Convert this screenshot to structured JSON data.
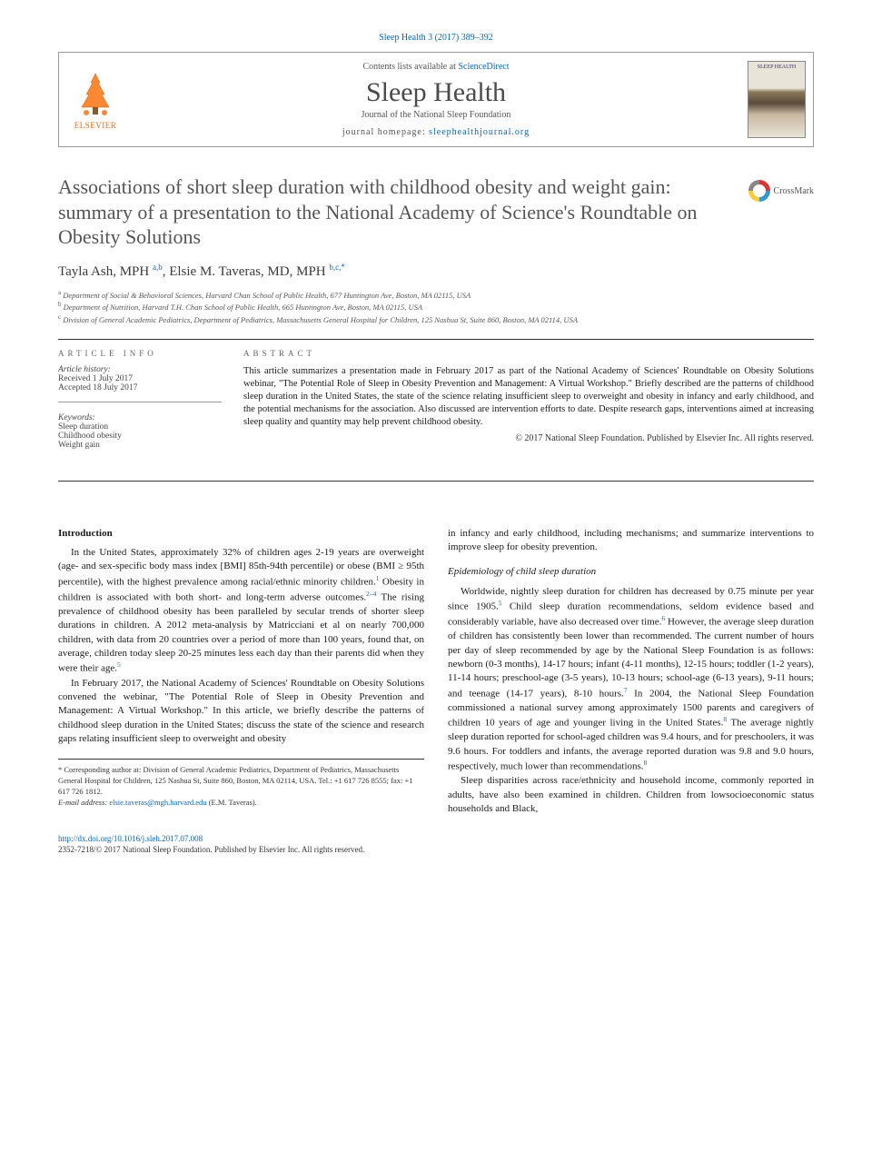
{
  "citation": "Sleep Health 3 (2017) 389–392",
  "header": {
    "contents_prefix": "Contents lists available at ",
    "contents_link": "ScienceDirect",
    "journal_title": "Sleep Health",
    "journal_subtitle": "Journal of the National Sleep Foundation",
    "homepage_prefix": "journal homepage: ",
    "homepage_link": "sleephealthjournal.org",
    "elsevier_label": "ELSEVIER",
    "cover_label": "SLEEP HEALTH"
  },
  "crossmark_label": "CrossMark",
  "title": "Associations of short sleep duration with childhood obesity and weight gain: summary of a presentation to the National Academy of Science's Roundtable on Obesity Solutions",
  "authors_html": "Tayla Ash, MPH <sup>a,b</sup>, Elsie M. Taveras, MD, MPH <sup>b,c,*</sup>",
  "affiliations": [
    "a Department of Social & Behavioral Sciences, Harvard Chan School of Public Health, 677 Huntington Ave, Boston, MA 02115, USA",
    "b Department of Nutrition, Harvard T.H. Chan School of Public Health, 665 Huntington Ave, Boston, MA 02115, USA",
    "c Division of General Academic Pediatrics, Department of Pediatrics, Massachusetts General Hospital for Children, 125 Nashua St, Suite 860, Boston, MA 02114, USA"
  ],
  "info": {
    "heading": "ARTICLE INFO",
    "history_label": "Article history:",
    "received": "Received 1 July 2017",
    "accepted": "Accepted 18 July 2017",
    "keywords_label": "Keywords:",
    "keywords": [
      "Sleep duration",
      "Childhood obesity",
      "Weight gain"
    ]
  },
  "abstract": {
    "heading": "ABSTRACT",
    "text": "This article summarizes a presentation made in February 2017 as part of the National Academy of Sciences' Roundtable on Obesity Solutions webinar, \"The Potential Role of Sleep in Obesity Prevention and Management: A Virtual Workshop.\" Briefly described are the patterns of childhood sleep duration in the United States, the state of the science relating insufficient sleep to overweight and obesity in infancy and early childhood, and the potential mechanisms for the association. Also discussed are intervention efforts to date. Despite research gaps, interventions aimed at increasing sleep quality and quantity may help prevent childhood obesity.",
    "copyright": "© 2017 National Sleep Foundation. Published by Elsevier Inc. All rights reserved."
  },
  "body": {
    "intro_heading": "Introduction",
    "p1": "In the United States, approximately 32% of children ages 2-19 years are overweight (age- and sex-specific body mass index [BMI] 85th-94th percentile) or obese (BMI ≥ 95th percentile), with the highest prevalence among racial/ethnic minority children.¹ Obesity in children is associated with both short- and long-term adverse outcomes.²⁻⁴ The rising prevalence of childhood obesity has been paralleled by secular trends of shorter sleep durations in children. A 2012 meta-analysis by Matricciani et al on nearly 700,000 children, with data from 20 countries over a period of more than 100 years, found that, on average, children today sleep 20-25 minutes less each day than their parents did when they were their age.⁵",
    "p2": "In February 2017, the National Academy of Sciences' Roundtable on Obesity Solutions convened the webinar, \"The Potential Role of Sleep in Obesity Prevention and Management: A Virtual Workshop.\" In this article, we briefly describe the patterns of childhood sleep duration in the United States; discuss the state of the science and research gaps relating insufficient sleep to overweight and obesity",
    "p2b": "in infancy and early childhood, including mechanisms; and summarize interventions to improve sleep for obesity prevention.",
    "sub_heading": "Epidemiology of child sleep duration",
    "p3": "Worldwide, nightly sleep duration for children has decreased by 0.75 minute per year since 1905.⁵ Child sleep duration recommendations, seldom evidence based and considerably variable, have also decreased over time.⁶ However, the average sleep duration of children has consistently been lower than recommended. The current number of hours per day of sleep recommended by age by the National Sleep Foundation is as follows: newborn (0-3 months), 14-17 hours; infant (4-11 months), 12-15 hours; toddler (1-2 years), 11-14 hours; preschool-age (3-5 years), 10-13 hours; school-age (6-13 years), 9-11 hours; and teenage (14-17 years), 8-10 hours.⁷ In 2004, the National Sleep Foundation commissioned a national survey among approximately 1500 parents and caregivers of children 10 years of age and younger living in the United States.⁸ The average nightly sleep duration reported for school-aged children was 9.4 hours, and for preschoolers, it was 9.6 hours. For toddlers and infants, the average reported duration was 9.8 and 9.0 hours, respectively, much lower than recommendations.⁸",
    "p4": "Sleep disparities across race/ethnicity and household income, commonly reported in adults, have also been examined in children. Children from lowsocioeconomic status households and Black,"
  },
  "corresponding": {
    "text": "* Corresponding author at: Division of General Academic Pediatrics, Department of Pediatrics, Massachusetts General Hospital for Children, 125 Nashua St, Suite 860, Boston, MA 02114, USA. Tel.: +1 617 726 8555; fax: +1 617 726 1812.",
    "email_label": "E-mail address: ",
    "email": "elsie.taveras@mgh.harvard.edu",
    "email_suffix": " (E.M. Taveras)."
  },
  "footer": {
    "doi": "http://dx.doi.org/10.1016/j.sleh.2017.07.008",
    "issn_line": "2352-7218/© 2017 National Sleep Foundation. Published by Elsevier Inc. All rights reserved."
  },
  "colors": {
    "link": "#0066cc",
    "title_gray": "#555555",
    "elsevier_orange": "#ff6600",
    "text": "#1a1a1a",
    "border": "#333333"
  }
}
